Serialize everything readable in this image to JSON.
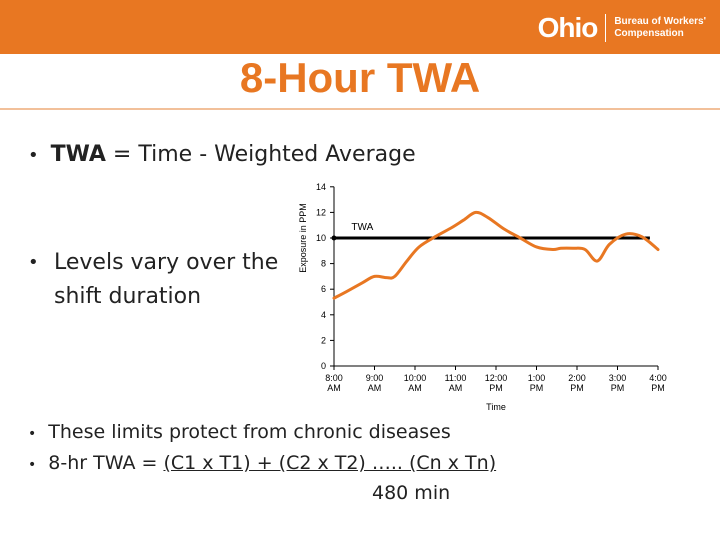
{
  "header": {
    "logo_word": "Ohio",
    "logo_line1": "Bureau of Workers'",
    "logo_line2": "Compensation",
    "bar_color": "#e87722"
  },
  "slide": {
    "title": "8-Hour TWA",
    "bullet_twa_bold": "TWA",
    "bullet_twa_rest": " = Time - Weighted Average",
    "bullet_levels": "Levels vary over the shift duration",
    "bullet_limits": "These limits protect  from chronic diseases",
    "formula_prefix": "8-hr TWA = ",
    "formula_numerator": "(C1 x T1) + (C2 x T2) ….. (Cn x Tn)",
    "formula_denominator": "480 min"
  },
  "chart_data": {
    "type": "line",
    "title": "",
    "xlabel": "Time",
    "ylabel": "Exposure in PPM",
    "ylim": [
      0,
      14
    ],
    "yticks": [
      0,
      2,
      4,
      6,
      8,
      10,
      12,
      14
    ],
    "categories": [
      "8:00 AM",
      "9:00 AM",
      "10:00 AM",
      "11:00 AM",
      "12:00 PM",
      "1:00 PM",
      "2:00 PM",
      "3:00 PM",
      "4:00 PM"
    ],
    "tick_labels_top": [
      "8:00",
      "9:00",
      "10:00",
      "11:00",
      "12:00",
      "1:00",
      "2:00",
      "3:00",
      "4:00"
    ],
    "tick_labels_bottom": [
      "AM",
      "AM",
      "AM",
      "AM",
      "PM",
      "PM",
      "PM",
      "PM",
      "PM"
    ],
    "series": [
      {
        "name": "Exposure",
        "color": "#e87722",
        "x": [
          0,
          0.3,
          0.7,
          1.0,
          1.3,
          1.5,
          1.8,
          2.1,
          2.5,
          2.9,
          3.2,
          3.5,
          3.8,
          4.2,
          4.6,
          5.0,
          5.4,
          5.6,
          5.9,
          6.2,
          6.5,
          6.8,
          7.2,
          7.6,
          8.0
        ],
        "values": [
          5.3,
          5.8,
          6.5,
          7.0,
          6.9,
          7.0,
          8.2,
          9.3,
          10.1,
          10.8,
          11.4,
          12.0,
          11.6,
          10.7,
          10.0,
          9.3,
          9.1,
          9.2,
          9.2,
          9.1,
          8.2,
          9.5,
          10.3,
          10.1,
          9.1
        ]
      }
    ],
    "reference_line": {
      "label": "TWA",
      "value": 10,
      "color": "#000000"
    }
  }
}
